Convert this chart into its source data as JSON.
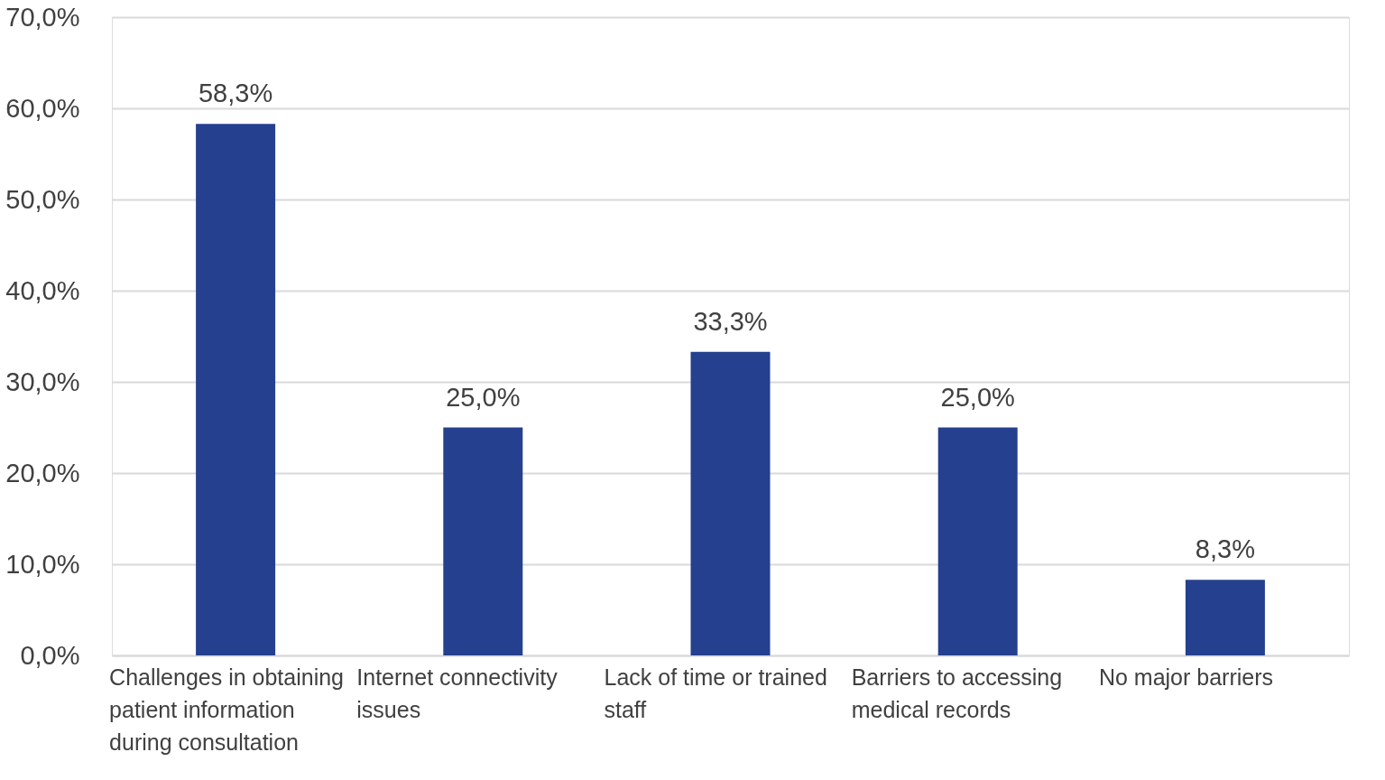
{
  "chart_data": {
    "type": "bar",
    "categories": [
      "Challenges in obtaining patient information during consultation",
      "Internet connectivity issues",
      "Lack of time or trained staff",
      "Barriers to accessing medical records",
      "No major barriers"
    ],
    "values": [
      58.3,
      25.0,
      33.3,
      25.0,
      8.3
    ],
    "value_labels": [
      "58,3%",
      "25,0%",
      "33,3%",
      "25,0%",
      "8,3%"
    ],
    "color": "#24408e",
    "ylim": [
      0,
      70
    ],
    "yticks": [
      {
        "value": 0,
        "label": "0,0%"
      },
      {
        "value": 10,
        "label": "10,0%"
      },
      {
        "value": 20,
        "label": "20,0%"
      },
      {
        "value": 30,
        "label": "30,0%"
      },
      {
        "value": 40,
        "label": "40,0%"
      },
      {
        "value": 50,
        "label": "50,0%"
      },
      {
        "value": 60,
        "label": "60,0%"
      },
      {
        "value": 70,
        "label": "70,0%"
      }
    ],
    "grid": "y"
  }
}
